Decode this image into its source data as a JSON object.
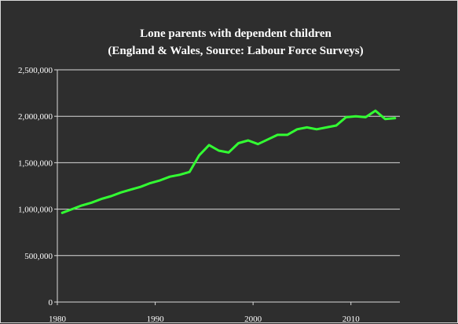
{
  "chart_data": {
    "type": "line",
    "title": "Lone parents with dependent children",
    "subtitle": "(England & Wales, Source: Labour Force Surveys)",
    "xlabel": "",
    "ylabel": "",
    "xlim": [
      1980,
      2015
    ],
    "ylim": [
      0,
      2500000
    ],
    "x_ticks": [
      1980,
      1990,
      2000,
      2010
    ],
    "x_tick_labels": [
      "1980",
      "1990",
      "2000",
      "2010"
    ],
    "y_ticks": [
      0,
      500000,
      1000000,
      1500000,
      2000000,
      2500000
    ],
    "y_tick_labels": [
      "0",
      "500,000",
      "1,000,000",
      "1,500,000",
      "2,000,000",
      "2,500,000"
    ],
    "grid": true,
    "legend": "none",
    "colors": {
      "line": "#33ff33",
      "background": "#2e2e2e",
      "grid": "#d9d9d9",
      "text": "#ffffff"
    },
    "series": [
      {
        "x": [
          1980.5,
          1981.5,
          1982.5,
          1983.5,
          1984.5,
          1985.5,
          1986.5,
          1987.5,
          1988.5,
          1989.5,
          1990.5,
          1991.5,
          1992.5,
          1993.5,
          1994.5,
          1995.5,
          1996.5,
          1997.5,
          1998.5,
          1999.5,
          2000.5,
          2001.5,
          2002.5,
          2003.5,
          2004.5,
          2005.5,
          2006.5,
          2007.5,
          2008.5,
          2009.5,
          2010.5,
          2011.5,
          2012.5,
          2013.5,
          2014.5
        ],
        "values": [
          960000,
          1000000,
          1040000,
          1070000,
          1110000,
          1140000,
          1180000,
          1210000,
          1240000,
          1280000,
          1310000,
          1350000,
          1370000,
          1400000,
          1580000,
          1690000,
          1630000,
          1610000,
          1710000,
          1740000,
          1700000,
          1750000,
          1800000,
          1800000,
          1860000,
          1880000,
          1860000,
          1880000,
          1900000,
          1990000,
          2000000,
          1990000,
          2060000,
          1970000,
          1980000
        ]
      }
    ]
  }
}
